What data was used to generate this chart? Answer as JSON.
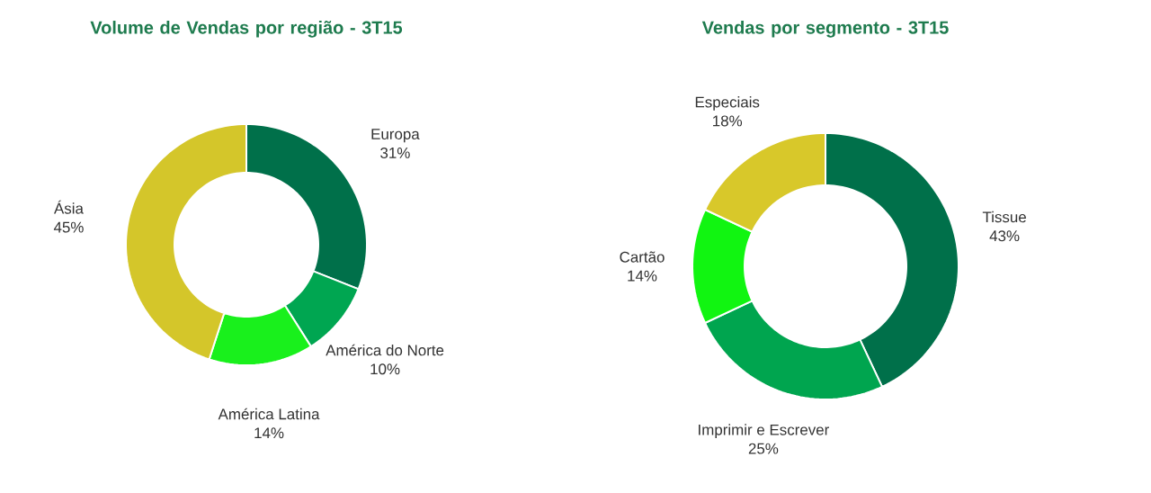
{
  "chart_data": [
    {
      "type": "donut",
      "title": "Volume de Vendas por região - 3T15",
      "categories": [
        "Europa",
        "América do Norte",
        "América Latina",
        "Ásia"
      ],
      "values": [
        31,
        10,
        14,
        45
      ],
      "value_labels": [
        "31%",
        "10%",
        "14%",
        "45%"
      ],
      "colors": [
        "#00704a",
        "#00a651",
        "#19f01c",
        "#d4c62a"
      ]
    },
    {
      "type": "donut",
      "title": "Vendas por segmento - 3T15",
      "categories": [
        "Tissue",
        "Imprimir e Escrever",
        "Cartão",
        "Especiais"
      ],
      "values": [
        43,
        25,
        14,
        18
      ],
      "value_labels": [
        "43%",
        "25%",
        "14%",
        "18%"
      ],
      "colors": [
        "#00704a",
        "#00a54f",
        "#11f511",
        "#d8c82a"
      ]
    }
  ]
}
